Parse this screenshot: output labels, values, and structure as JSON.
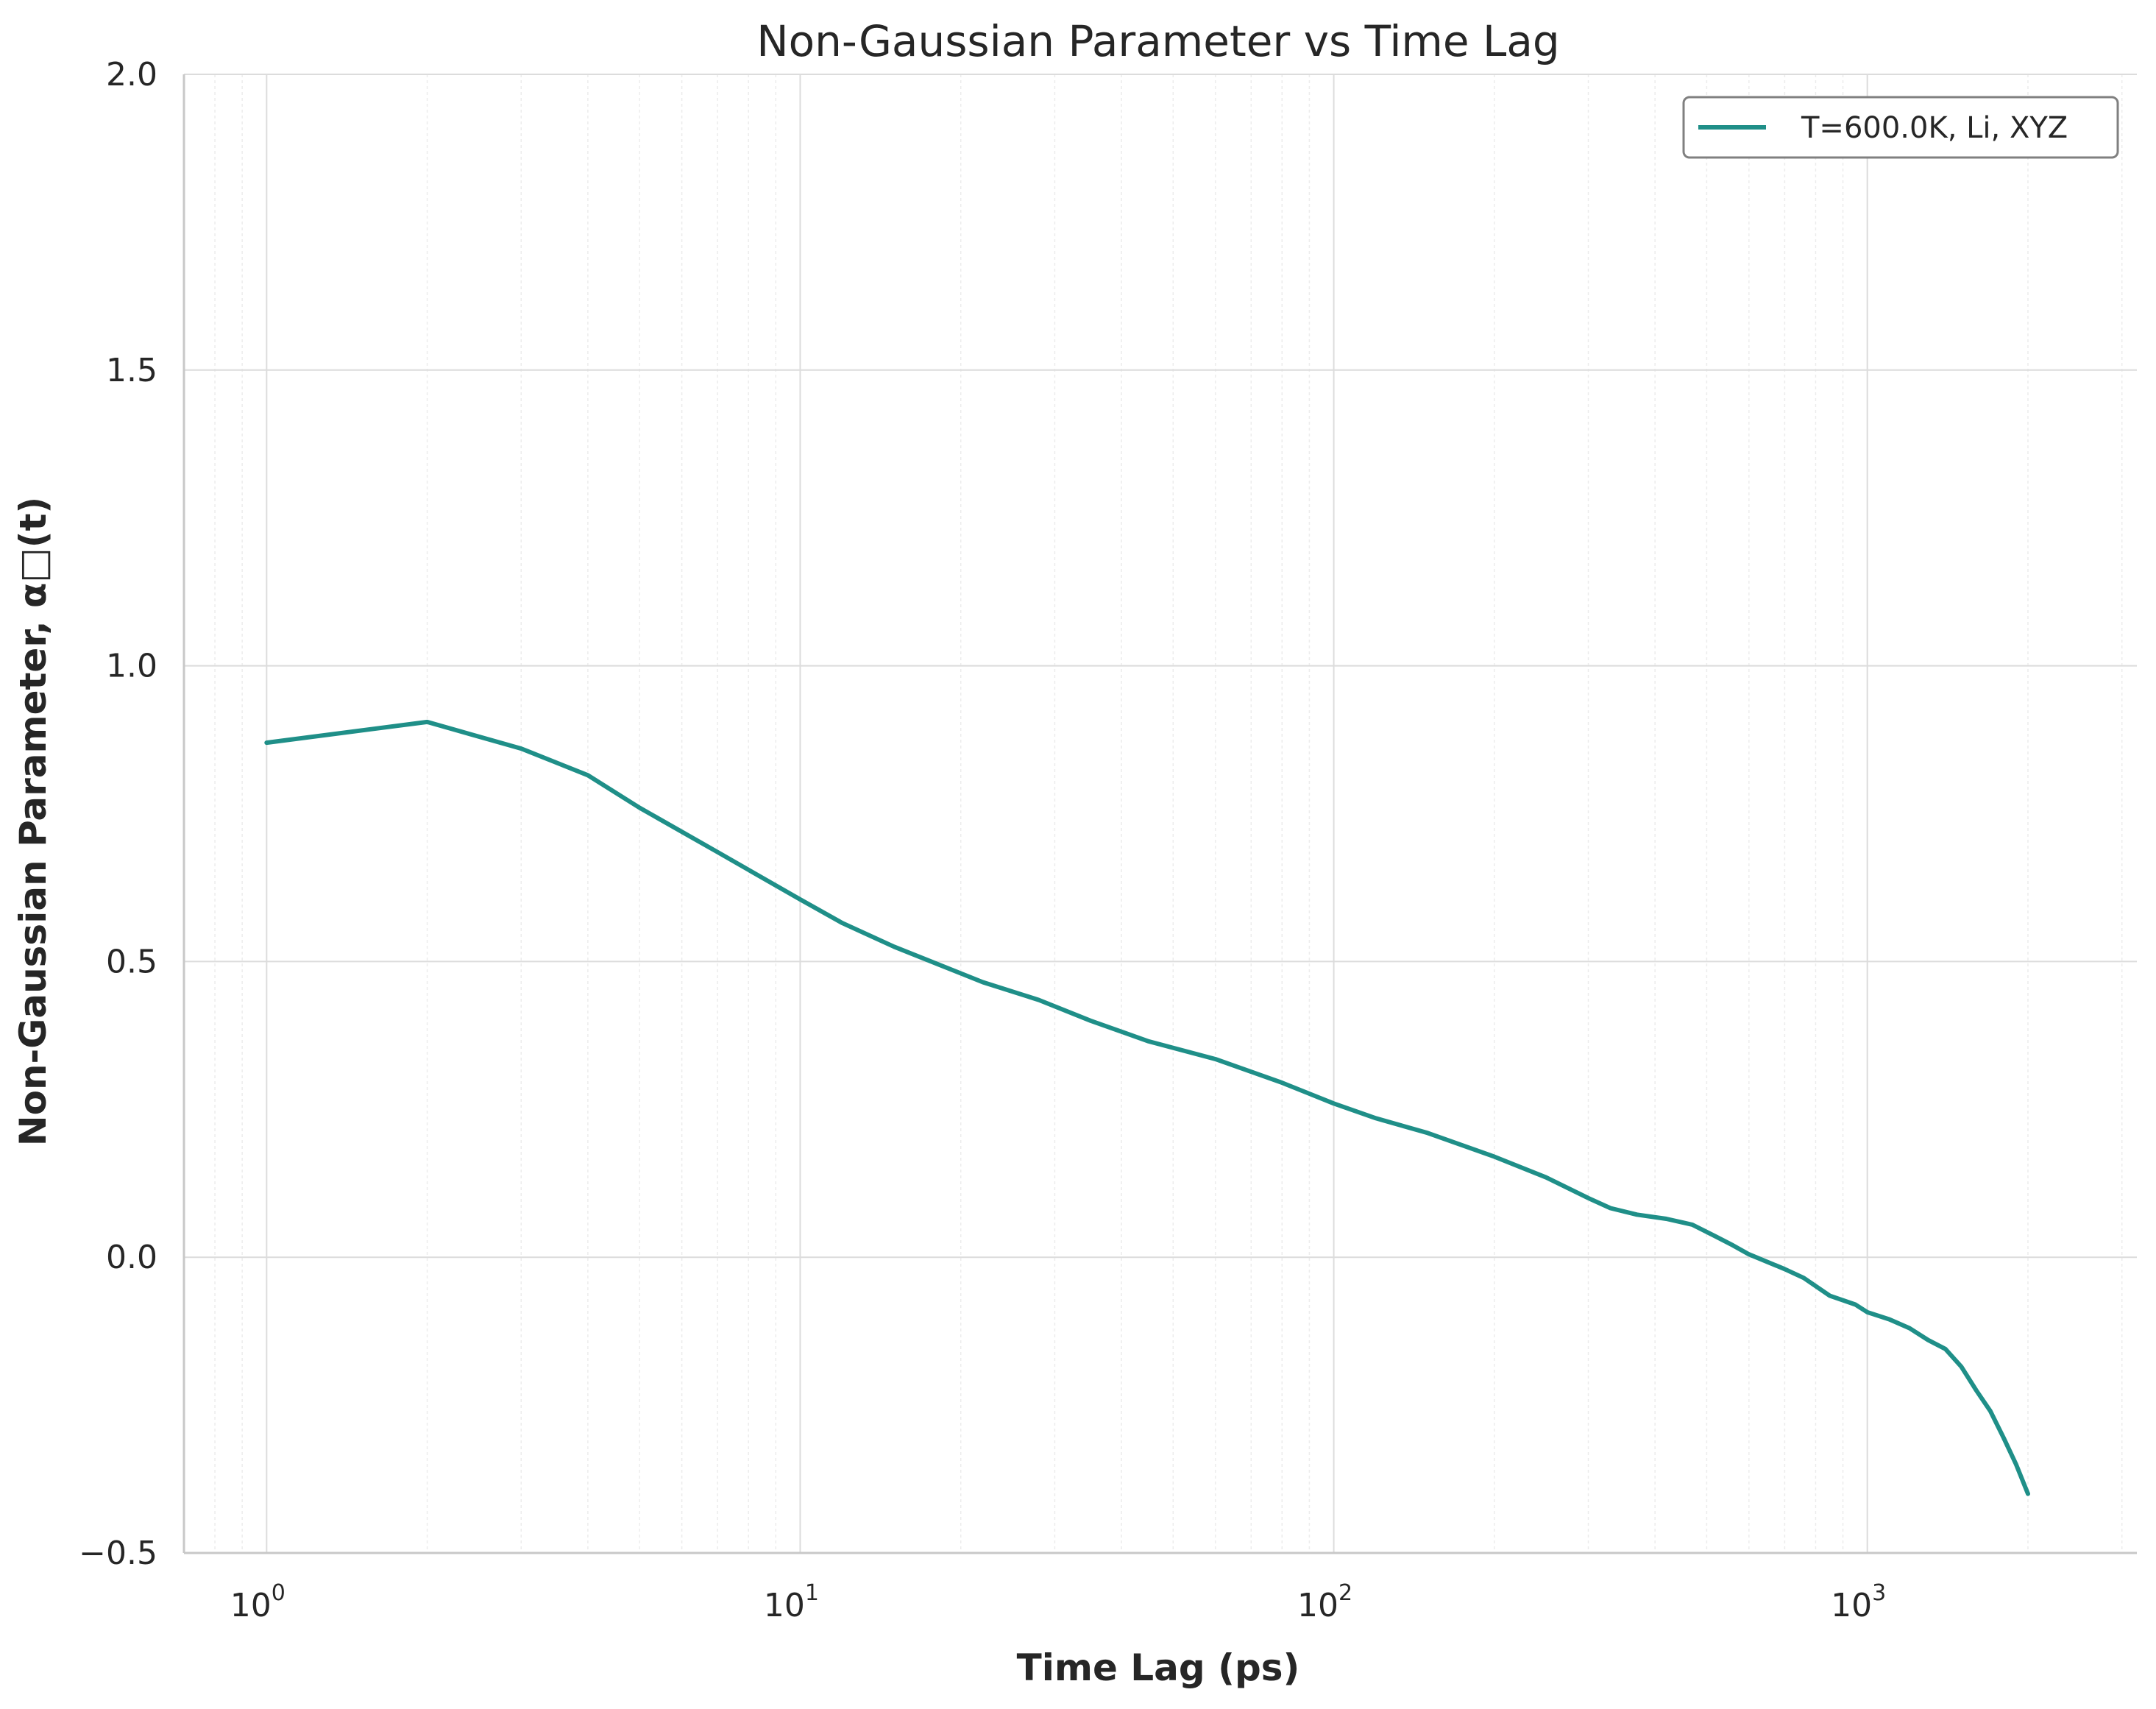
{
  "chart_data": {
    "type": "line",
    "title": "Non-Gaussian Parameter vs Time Lag",
    "xlabel": "Time Lag (ps)",
    "ylabel": "Non-Gaussian Parameter, α□(t)",
    "xscale": "log",
    "xlim": [
      0.7,
      3200
    ],
    "ylim": [
      -0.5,
      2.0
    ],
    "x_ticks": [
      {
        "base": "10",
        "exp": "0",
        "value": 1
      },
      {
        "base": "10",
        "exp": "1",
        "value": 10
      },
      {
        "base": "10",
        "exp": "2",
        "value": 100
      },
      {
        "base": "10",
        "exp": "3",
        "value": 1000
      }
    ],
    "y_ticks": [
      {
        "label": "2.0",
        "value": 2.0
      },
      {
        "label": "1.5",
        "value": 1.5
      },
      {
        "label": "1.0",
        "value": 1.0
      },
      {
        "label": "0.5",
        "value": 0.5
      },
      {
        "label": "0.0",
        "value": 0.0
      },
      {
        "label": "−0.5",
        "value": -0.5
      }
    ],
    "grid": true,
    "legend_position": "top-right",
    "series": [
      {
        "name": "T=600.0K, Li, XYZ",
        "color": "#1f8f88",
        "x": [
          1,
          2,
          3,
          4,
          5,
          7,
          8,
          10,
          12,
          15,
          20,
          22,
          28,
          35,
          45,
          60,
          80,
          100,
          120,
          150,
          200,
          250,
          300,
          330,
          370,
          420,
          470,
          520,
          560,
          600,
          700,
          760,
          850,
          950,
          1000,
          1100,
          1200,
          1300,
          1400,
          1500,
          1600,
          1700,
          1800,
          1900,
          2000
        ],
        "y": [
          0.87,
          0.905,
          0.86,
          0.815,
          0.76,
          0.685,
          0.655,
          0.605,
          0.565,
          0.525,
          0.48,
          0.465,
          0.435,
          0.4,
          0.365,
          0.335,
          0.295,
          0.26,
          0.235,
          0.21,
          0.17,
          0.135,
          0.1,
          0.083,
          0.072,
          0.065,
          0.055,
          0.035,
          0.02,
          0.005,
          -0.02,
          -0.035,
          -0.065,
          -0.08,
          -0.093,
          -0.105,
          -0.12,
          -0.14,
          -0.155,
          -0.185,
          -0.225,
          -0.26,
          -0.305,
          -0.35,
          -0.4
        ]
      }
    ]
  }
}
